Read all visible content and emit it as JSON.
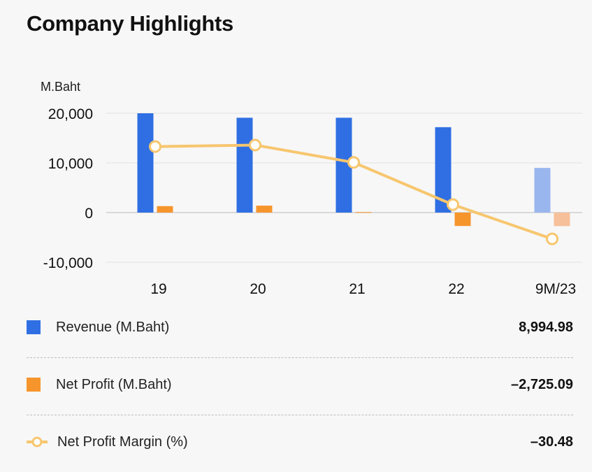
{
  "title": "Company Highlights",
  "unit_label": "M.Baht",
  "colors": {
    "revenue": "#2f6fe3",
    "revenue_faded": "#9ab6ef",
    "net_profit": "#f7952d",
    "net_profit_faded": "#f6c09a",
    "margin_line": "#f7c66e",
    "gridline": "#e2e2e2",
    "baseline": "#cfcfcf",
    "background": "#f7f7f7"
  },
  "chart_data": {
    "type": "bar",
    "categories": [
      "19",
      "20",
      "21",
      "22",
      "9M/23"
    ],
    "series": [
      {
        "name": "Revenue (M.Baht)",
        "kind": "bar",
        "values": [
          20000,
          19100,
          19100,
          17200,
          8995
        ]
      },
      {
        "name": "Net Profit (M.Baht)",
        "kind": "bar",
        "values": [
          1300,
          1400,
          100,
          -2700,
          -2725
        ]
      },
      {
        "name": "Net Profit Margin (%)",
        "kind": "line",
        "plotted_on": "left-axis scale",
        "values": [
          13300,
          13600,
          10100,
          1600,
          -5300
        ]
      }
    ],
    "y_ticks": [
      20000,
      10000,
      0,
      -10000
    ],
    "y_tick_labels": [
      "20,000",
      "10,000",
      "0",
      "-10,000"
    ],
    "ylim": [
      -10000,
      20000
    ],
    "ylabel": "M.Baht",
    "xlabel": "",
    "grid": true,
    "faded_category": "9M/23"
  },
  "legend": [
    {
      "marker": "square",
      "label": "Revenue (M.Baht)",
      "value": "8,994.98"
    },
    {
      "marker": "square",
      "label": "Net Profit (M.Baht)",
      "value": "–2,725.09"
    },
    {
      "marker": "line-circle",
      "label": "Net Profit Margin (%)",
      "value": "–30.48"
    }
  ]
}
